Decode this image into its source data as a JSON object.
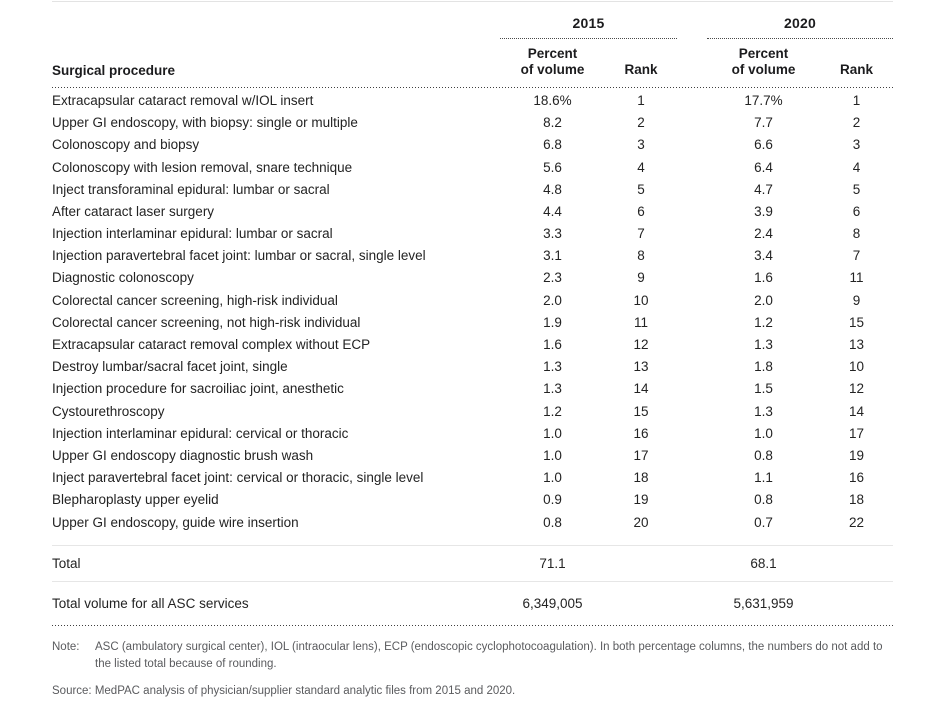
{
  "table": {
    "year_2015": "2015",
    "year_2020": "2020",
    "procedure_header": "Surgical procedure",
    "percent_header": "Percent\nof volume",
    "rank_header": "Rank",
    "rows": [
      {
        "procedure": "Extracapsular cataract removal w/IOL insert",
        "p2015": "18.6%",
        "r2015": "1",
        "p2020": "17.7%",
        "r2020": "1"
      },
      {
        "procedure": "Upper GI endoscopy, with biopsy: single or multiple",
        "p2015": "8.2",
        "r2015": "2",
        "p2020": "7.7",
        "r2020": "2"
      },
      {
        "procedure": "Colonoscopy and biopsy",
        "p2015": "6.8",
        "r2015": "3",
        "p2020": "6.6",
        "r2020": "3"
      },
      {
        "procedure": "Colonoscopy with lesion removal, snare technique",
        "p2015": "5.6",
        "r2015": "4",
        "p2020": "6.4",
        "r2020": "4"
      },
      {
        "procedure": "Inject transforaminal epidural: lumbar or sacral",
        "p2015": "4.8",
        "r2015": "5",
        "p2020": "4.7",
        "r2020": "5"
      },
      {
        "procedure": "After cataract laser surgery",
        "p2015": "4.4",
        "r2015": "6",
        "p2020": "3.9",
        "r2020": "6"
      },
      {
        "procedure": "Injection interlaminar epidural: lumbar or sacral",
        "p2015": "3.3",
        "r2015": "7",
        "p2020": "2.4",
        "r2020": "8"
      },
      {
        "procedure": "Injection paravertebral facet joint: lumbar or sacral, single level",
        "p2015": "3.1",
        "r2015": "8",
        "p2020": "3.4",
        "r2020": "7"
      },
      {
        "procedure": "Diagnostic colonoscopy",
        "p2015": "2.3",
        "r2015": "9",
        "p2020": "1.6",
        "r2020": "11"
      },
      {
        "procedure": "Colorectal cancer screening, high-risk individual",
        "p2015": "2.0",
        "r2015": "10",
        "p2020": "2.0",
        "r2020": "9"
      },
      {
        "procedure": "Colorectal cancer screening, not high-risk individual",
        "p2015": "1.9",
        "r2015": "11",
        "p2020": "1.2",
        "r2020": "15"
      },
      {
        "procedure": "Extracapsular cataract removal complex without ECP",
        "p2015": "1.6",
        "r2015": "12",
        "p2020": "1.3",
        "r2020": "13"
      },
      {
        "procedure": "Destroy lumbar/sacral facet joint, single",
        "p2015": "1.3",
        "r2015": "13",
        "p2020": "1.8",
        "r2020": "10"
      },
      {
        "procedure": "Injection procedure for sacroiliac joint, anesthetic",
        "p2015": "1.3",
        "r2015": "14",
        "p2020": "1.5",
        "r2020": "12"
      },
      {
        "procedure": "Cystourethroscopy",
        "p2015": "1.2",
        "r2015": "15",
        "p2020": "1.3",
        "r2020": "14"
      },
      {
        "procedure": "Injection interlaminar epidural: cervical or thoracic",
        "p2015": "1.0",
        "r2015": "16",
        "p2020": "1.0",
        "r2020": "17"
      },
      {
        "procedure": "Upper GI endoscopy diagnostic brush wash",
        "p2015": "1.0",
        "r2015": "17",
        "p2020": "0.8",
        "r2020": "19"
      },
      {
        "procedure": "Inject paravertebral facet joint: cervical or thoracic, single level",
        "p2015": "1.0",
        "r2015": "18",
        "p2020": "1.1",
        "r2020": "16"
      },
      {
        "procedure": "Blepharoplasty upper eyelid",
        "p2015": "0.9",
        "r2015": "19",
        "p2020": "0.8",
        "r2020": "18"
      },
      {
        "procedure": "Upper GI endoscopy, guide wire insertion",
        "p2015": "0.8",
        "r2015": "20",
        "p2020": "0.7",
        "r2020": "22"
      }
    ],
    "total": {
      "label": "Total",
      "p2015": "71.1",
      "p2020": "68.1"
    },
    "total_volume": {
      "label": "Total volume for all ASC services",
      "v2015": "6,349,005",
      "v2020": "5,631,959"
    }
  },
  "footnotes": {
    "note_label": "Note:",
    "note_text": "ASC (ambulatory surgical center), IOL (intraocular lens), ECP (endoscopic cyclophotocoagulation). In both percentage columns, the numbers do not add to the listed total because of rounding.",
    "source_text": "Source: MedPAC analysis of physician/supplier standard analytic files from 2015 and 2020."
  },
  "colors": {
    "text": "#232323",
    "muted_text": "#5a5b5e",
    "rule_dark": "#3f3f3f",
    "rule_light": "#e6e6e6"
  }
}
